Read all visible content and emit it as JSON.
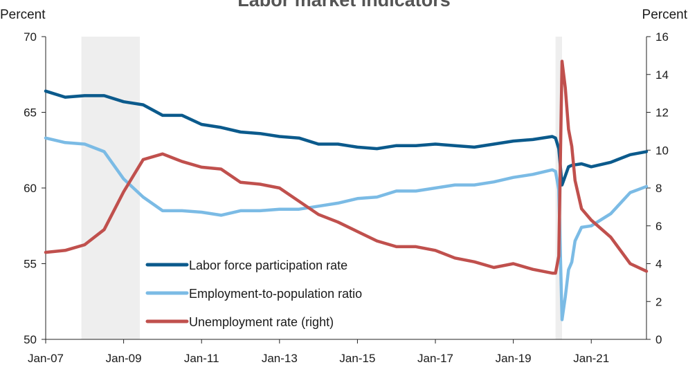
{
  "chart_data": {
    "type": "line",
    "title": "Labor market indicators",
    "ylabel_left": "Percent",
    "ylabel_right": "Percent",
    "x_start": "Jan-07",
    "x_end": "Jun-22",
    "ylim_left": [
      50,
      70
    ],
    "ylim_right": [
      0,
      16
    ],
    "left_ticks": [
      "50",
      "55",
      "60",
      "65",
      "70"
    ],
    "right_ticks": [
      "0",
      "2",
      "4",
      "6",
      "8",
      "10",
      "12",
      "14",
      "16"
    ],
    "x_ticks": [
      "Jan-07",
      "Jan-09",
      "Jan-11",
      "Jan-13",
      "Jan-15",
      "Jan-17",
      "Jan-19",
      "Jan-21"
    ],
    "recessions": [
      {
        "start": "Dec-07",
        "end": "Jun-09"
      },
      {
        "start": "Feb-20",
        "end": "Apr-20"
      }
    ],
    "legend_placement": "bottom-center",
    "series": [
      {
        "name": "Labor force participation rate",
        "axis": "left",
        "color": "#0b5a8c",
        "points": [
          [
            "Jan-07",
            66.4
          ],
          [
            "Jul-07",
            66.0
          ],
          [
            "Jan-08",
            66.1
          ],
          [
            "Jul-08",
            66.1
          ],
          [
            "Jan-09",
            65.7
          ],
          [
            "Jul-09",
            65.5
          ],
          [
            "Jan-10",
            64.8
          ],
          [
            "Jul-10",
            64.8
          ],
          [
            "Jan-11",
            64.2
          ],
          [
            "Jul-11",
            64.0
          ],
          [
            "Jan-12",
            63.7
          ],
          [
            "Jul-12",
            63.6
          ],
          [
            "Jan-13",
            63.4
          ],
          [
            "Jul-13",
            63.3
          ],
          [
            "Jan-14",
            62.9
          ],
          [
            "Jul-14",
            62.9
          ],
          [
            "Jan-15",
            62.7
          ],
          [
            "Jul-15",
            62.6
          ],
          [
            "Jan-16",
            62.8
          ],
          [
            "Jul-16",
            62.8
          ],
          [
            "Jan-17",
            62.9
          ],
          [
            "Jul-17",
            62.8
          ],
          [
            "Jan-18",
            62.7
          ],
          [
            "Jul-18",
            62.9
          ],
          [
            "Jan-19",
            63.1
          ],
          [
            "Jul-19",
            63.2
          ],
          [
            "Jan-20",
            63.4
          ],
          [
            "Feb-20",
            63.3
          ],
          [
            "Mar-20",
            62.6
          ],
          [
            "Apr-20",
            60.2
          ],
          [
            "May-20",
            60.8
          ],
          [
            "Jun-20",
            61.4
          ],
          [
            "Jul-20",
            61.5
          ],
          [
            "Oct-20",
            61.6
          ],
          [
            "Jan-21",
            61.4
          ],
          [
            "Jul-21",
            61.7
          ],
          [
            "Jan-22",
            62.2
          ],
          [
            "Jun-22",
            62.4
          ]
        ]
      },
      {
        "name": "Employment-to-population ratio",
        "axis": "left",
        "color": "#7bbbe5",
        "points": [
          [
            "Jan-07",
            63.3
          ],
          [
            "Jul-07",
            63.0
          ],
          [
            "Jan-08",
            62.9
          ],
          [
            "Jul-08",
            62.4
          ],
          [
            "Jan-09",
            60.6
          ],
          [
            "Jul-09",
            59.4
          ],
          [
            "Jan-10",
            58.5
          ],
          [
            "Jul-10",
            58.5
          ],
          [
            "Jan-11",
            58.4
          ],
          [
            "Jul-11",
            58.2
          ],
          [
            "Jan-12",
            58.5
          ],
          [
            "Jul-12",
            58.5
          ],
          [
            "Jan-13",
            58.6
          ],
          [
            "Jul-13",
            58.6
          ],
          [
            "Jan-14",
            58.8
          ],
          [
            "Jul-14",
            59.0
          ],
          [
            "Jan-15",
            59.3
          ],
          [
            "Jul-15",
            59.4
          ],
          [
            "Jan-16",
            59.8
          ],
          [
            "Jul-16",
            59.8
          ],
          [
            "Jan-17",
            60.0
          ],
          [
            "Jul-17",
            60.2
          ],
          [
            "Jan-18",
            60.2
          ],
          [
            "Jul-18",
            60.4
          ],
          [
            "Jan-19",
            60.7
          ],
          [
            "Jul-19",
            60.9
          ],
          [
            "Jan-20",
            61.2
          ],
          [
            "Feb-20",
            61.1
          ],
          [
            "Mar-20",
            59.9
          ],
          [
            "Apr-20",
            51.3
          ],
          [
            "May-20",
            52.8
          ],
          [
            "Jun-20",
            54.6
          ],
          [
            "Jul-20",
            55.1
          ],
          [
            "Aug-20",
            56.5
          ],
          [
            "Oct-20",
            57.4
          ],
          [
            "Jan-21",
            57.5
          ],
          [
            "Jul-21",
            58.3
          ],
          [
            "Jan-22",
            59.7
          ],
          [
            "Jun-22",
            60.1
          ]
        ]
      },
      {
        "name": "Unemployment rate (right)",
        "axis": "right",
        "color": "#c0504d",
        "points": [
          [
            "Jan-07",
            4.6
          ],
          [
            "Jul-07",
            4.7
          ],
          [
            "Jan-08",
            5.0
          ],
          [
            "Jul-08",
            5.8
          ],
          [
            "Jan-09",
            7.8
          ],
          [
            "Jul-09",
            9.5
          ],
          [
            "Jan-10",
            9.8
          ],
          [
            "Jul-10",
            9.4
          ],
          [
            "Jan-11",
            9.1
          ],
          [
            "Jul-11",
            9.0
          ],
          [
            "Jan-12",
            8.3
          ],
          [
            "Jul-12",
            8.2
          ],
          [
            "Jan-13",
            8.0
          ],
          [
            "Jul-13",
            7.3
          ],
          [
            "Jan-14",
            6.6
          ],
          [
            "Jul-14",
            6.2
          ],
          [
            "Jan-15",
            5.7
          ],
          [
            "Jul-15",
            5.2
          ],
          [
            "Jan-16",
            4.9
          ],
          [
            "Jul-16",
            4.9
          ],
          [
            "Jan-17",
            4.7
          ],
          [
            "Jul-17",
            4.3
          ],
          [
            "Jan-18",
            4.1
          ],
          [
            "Jul-18",
            3.8
          ],
          [
            "Jan-19",
            4.0
          ],
          [
            "Jul-19",
            3.7
          ],
          [
            "Jan-20",
            3.5
          ],
          [
            "Feb-20",
            3.5
          ],
          [
            "Mar-20",
            4.4
          ],
          [
            "Apr-20",
            14.7
          ],
          [
            "May-20",
            13.3
          ],
          [
            "Jun-20",
            11.1
          ],
          [
            "Jul-20",
            10.2
          ],
          [
            "Aug-20",
            8.4
          ],
          [
            "Oct-20",
            6.9
          ],
          [
            "Jan-21",
            6.3
          ],
          [
            "Jul-21",
            5.4
          ],
          [
            "Jan-22",
            4.0
          ],
          [
            "Jun-22",
            3.6
          ]
        ]
      }
    ]
  }
}
